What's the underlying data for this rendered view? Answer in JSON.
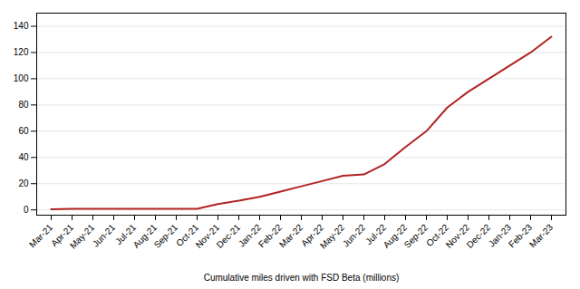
{
  "chart_data": {
    "type": "line",
    "xlabel": "Cumulative miles driven with FSD Beta (millions)",
    "categories": [
      "Mar-21",
      "Apr-21",
      "May-21",
      "Jun-21",
      "Jul-21",
      "Aug-21",
      "Sep-21",
      "Oct-21",
      "Nov-21",
      "Dec-21",
      "Jan-22",
      "Feb-22",
      "Mar-22",
      "Apr-22",
      "May-22",
      "Jun-22",
      "Jul-22",
      "Aug-22",
      "Sep-22",
      "Oct-22",
      "Nov-22",
      "Dec-22",
      "Jan-23",
      "Feb-23",
      "Mar-23"
    ],
    "values": [
      0.5,
      0.8,
      0.9,
      0.9,
      0.9,
      0.9,
      0.8,
      0.8,
      4.5,
      7,
      10,
      14,
      18,
      22,
      26,
      27,
      35,
      48,
      60,
      78,
      90,
      100,
      110,
      120,
      132
    ],
    "color": "#b22222",
    "ylim": [
      -4,
      150
    ],
    "yticks": [
      0,
      20,
      40,
      60,
      80,
      100,
      120,
      140
    ],
    "grid": true
  }
}
